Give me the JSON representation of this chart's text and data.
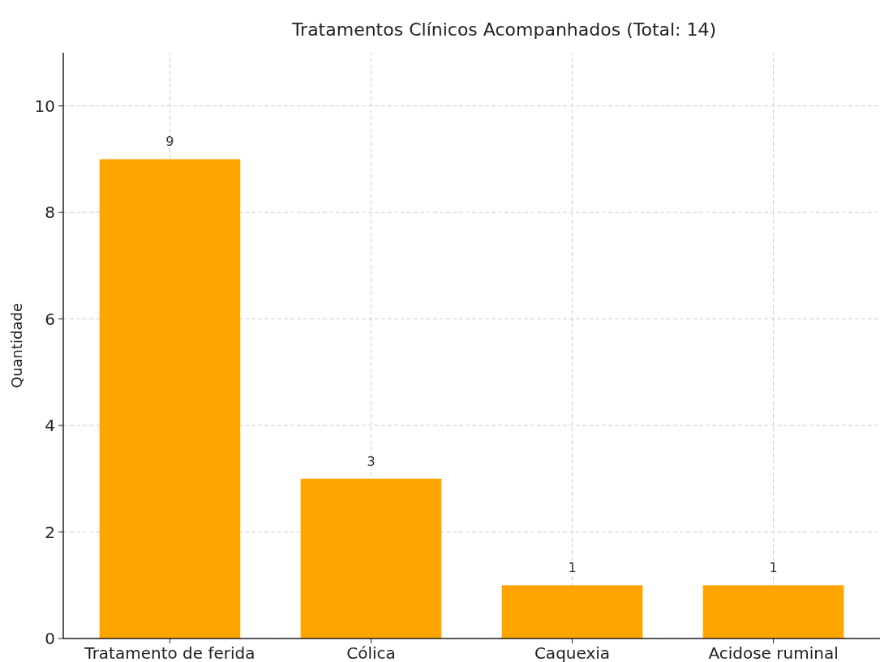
{
  "chart_data": {
    "type": "bar",
    "title": "Tratamentos Clínicos Acompanhados (Total: 14)",
    "ylabel": "Quantidade",
    "categories": [
      "Tratamento de ferida",
      "Cólica",
      "Caquexia",
      "Acidose ruminal"
    ],
    "values": [
      9,
      3,
      1,
      1
    ],
    "color": "#ffa500",
    "ylim": [
      0,
      11
    ],
    "yticks": [
      0,
      2,
      4,
      6,
      8,
      10
    ],
    "grid": true,
    "data_labels": true
  }
}
